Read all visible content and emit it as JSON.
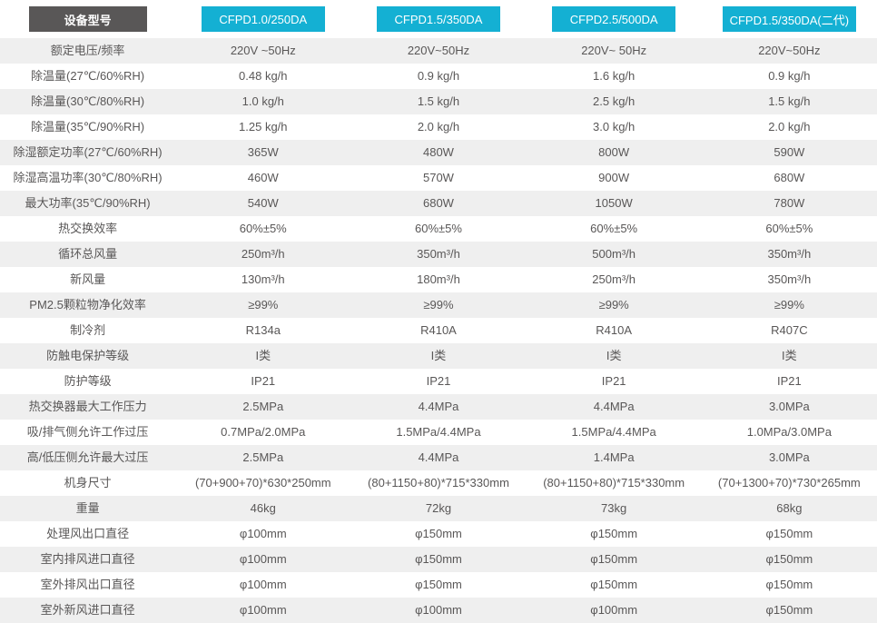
{
  "colors": {
    "accent_cyan": "#14b0d3",
    "header_dark_gray": "#595757",
    "row_alt_gray": "#efefef",
    "text_gray": "#595757"
  },
  "table": {
    "header": {
      "label": "设备型号",
      "models": [
        "CFPD1.0/250DA",
        "CFPD1.5/350DA",
        "CFPD2.5/500DA",
        "CFPD1.5/350DA(二代)"
      ]
    },
    "rows": [
      {
        "label": "额定电压/频率",
        "values": [
          "220V ~50Hz",
          "220V~50Hz",
          "220V~ 50Hz",
          "220V~50Hz"
        ]
      },
      {
        "label": "除温量(27℃/60%RH)",
        "values": [
          "0.48 kg/h",
          "0.9 kg/h",
          "1.6 kg/h",
          "0.9 kg/h"
        ]
      },
      {
        "label": "除温量(30℃/80%RH)",
        "values": [
          "1.0 kg/h",
          "1.5 kg/h",
          "2.5 kg/h",
          "1.5 kg/h"
        ]
      },
      {
        "label": "除温量(35℃/90%RH)",
        "values": [
          "1.25 kg/h",
          "2.0 kg/h",
          "3.0 kg/h",
          "2.0 kg/h"
        ]
      },
      {
        "label": "除湿额定功率(27℃/60%RH)",
        "values": [
          "365W",
          "480W",
          "800W",
          "590W"
        ]
      },
      {
        "label": "除湿高温功率(30℃/80%RH)",
        "values": [
          "460W",
          "570W",
          "900W",
          "680W"
        ]
      },
      {
        "label": "最大功率(35℃/90%RH)",
        "values": [
          "540W",
          "680W",
          "1050W",
          "780W"
        ]
      },
      {
        "label": "热交换效率",
        "values": [
          "60%±5%",
          "60%±5%",
          "60%±5%",
          "60%±5%"
        ]
      },
      {
        "label": "循环总风量",
        "values": [
          "250m³/h",
          "350m³/h",
          "500m³/h",
          "350m³/h"
        ]
      },
      {
        "label": "新风量",
        "values": [
          "130m³/h",
          "180m³/h",
          "250m³/h",
          "350m³/h"
        ]
      },
      {
        "label": "PM2.5颗粒物净化效率",
        "values": [
          "≥99%",
          "≥99%",
          "≥99%",
          "≥99%"
        ]
      },
      {
        "label": "制冷剂",
        "values": [
          "R134a",
          "R410A",
          "R410A",
          "R407C"
        ]
      },
      {
        "label": "防触电保护等级",
        "values": [
          "I类",
          "I类",
          "I类",
          "I类"
        ]
      },
      {
        "label": "防护等级",
        "values": [
          "IP21",
          "IP21",
          "IP21",
          "IP21"
        ]
      },
      {
        "label": "热交换器最大工作压力",
        "values": [
          "2.5MPa",
          "4.4MPa",
          "4.4MPa",
          "3.0MPa"
        ]
      },
      {
        "label": "吸/排气侧允许工作过压",
        "values": [
          "0.7MPa/2.0MPa",
          "1.5MPa/4.4MPa",
          "1.5MPa/4.4MPa",
          "1.0MPa/3.0MPa"
        ]
      },
      {
        "label": "高/低压侧允许最大过压",
        "values": [
          "2.5MPa",
          "4.4MPa",
          "1.4MPa",
          "3.0MPa"
        ]
      },
      {
        "label": "机身尺寸",
        "values": [
          "(70+900+70)*630*250mm",
          "(80+1150+80)*715*330mm",
          "(80+1150+80)*715*330mm",
          "(70+1300+70)*730*265mm"
        ]
      },
      {
        "label": "重量",
        "values": [
          "46kg",
          "72kg",
          "73kg",
          "68kg"
        ]
      },
      {
        "label": "处理风出口直径",
        "values": [
          "φ100mm",
          "φ150mm",
          "φ150mm",
          "φ150mm"
        ]
      },
      {
        "label": "室内排风进口直径",
        "values": [
          "φ100mm",
          "φ150mm",
          "φ150mm",
          "φ150mm"
        ]
      },
      {
        "label": "室外排风出口直径",
        "values": [
          "φ100mm",
          "φ150mm",
          "φ150mm",
          "φ150mm"
        ]
      },
      {
        "label": "室外新风进口直径",
        "values": [
          "φ100mm",
          "φ100mm",
          "φ100mm",
          "φ150mm"
        ]
      }
    ]
  }
}
